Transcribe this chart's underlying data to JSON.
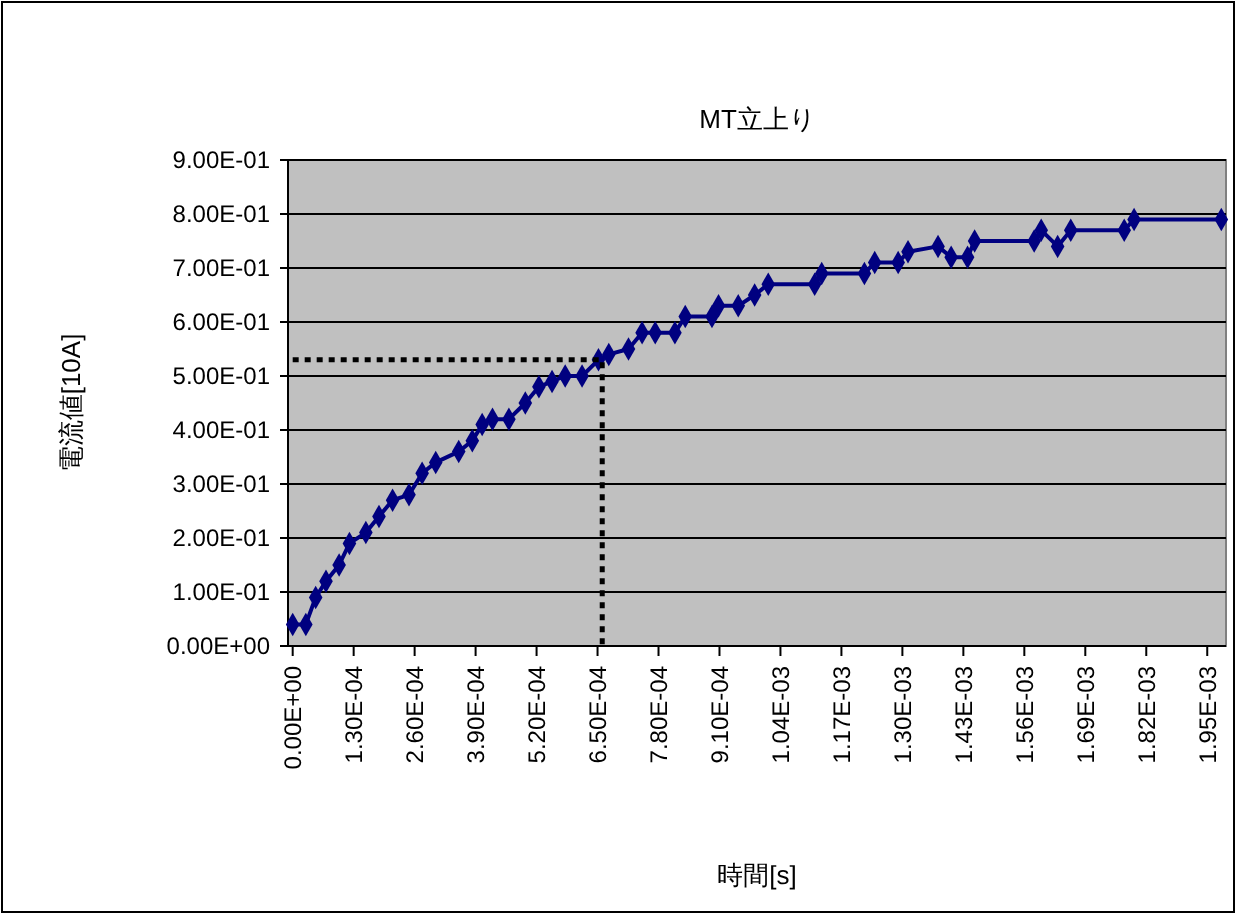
{
  "chart_data": {
    "type": "line",
    "title": "MT立上り",
    "xlabel": "時間[s]",
    "ylabel": "電流値[10A]",
    "xlim": [
      -1e-05,
      0.00199
    ],
    "xticks": [
      {
        "value": 0,
        "label": "0.00E+00"
      },
      {
        "value": 0.00013,
        "label": "1.30E-04"
      },
      {
        "value": 0.00026,
        "label": "2.60E-04"
      },
      {
        "value": 0.00039,
        "label": "3.90E-04"
      },
      {
        "value": 0.00052,
        "label": "5.20E-04"
      },
      {
        "value": 0.00065,
        "label": "6.50E-04"
      },
      {
        "value": 0.00078,
        "label": "7.80E-04"
      },
      {
        "value": 0.00091,
        "label": "9.10E-04"
      },
      {
        "value": 0.00104,
        "label": "1.04E-03"
      },
      {
        "value": 0.00117,
        "label": "1.17E-03"
      },
      {
        "value": 0.0013,
        "label": "1.30E-03"
      },
      {
        "value": 0.00143,
        "label": "1.43E-03"
      },
      {
        "value": 0.00156,
        "label": "1.56E-03"
      },
      {
        "value": 0.00169,
        "label": "1.69E-03"
      },
      {
        "value": 0.00182,
        "label": "1.82E-03"
      },
      {
        "value": 0.00195,
        "label": "1.95E-03"
      }
    ],
    "ylim": [
      0,
      0.9
    ],
    "yticks": [
      {
        "value": 0,
        "label": "0.00E+00"
      },
      {
        "value": 0.1,
        "label": "1.00E-01"
      },
      {
        "value": 0.2,
        "label": "2.00E-01"
      },
      {
        "value": 0.3,
        "label": "3.00E-01"
      },
      {
        "value": 0.4,
        "label": "4.00E-01"
      },
      {
        "value": 0.5,
        "label": "5.00E-01"
      },
      {
        "value": 0.6,
        "label": "6.00E-01"
      },
      {
        "value": 0.7,
        "label": "7.00E-01"
      },
      {
        "value": 0.8,
        "label": "8.00E-01"
      },
      {
        "value": 0.9,
        "label": "9.00E-01"
      }
    ],
    "grid": "y",
    "series": [
      {
        "color": "#000080",
        "marker": "diamond",
        "line_style": "solid",
        "x": [
          0,
          2.8e-05,
          4.9e-05,
          7.1e-05,
          9.9e-05,
          0.000121,
          0.000156,
          0.000184,
          0.000213,
          0.000248,
          0.000276,
          0.000305,
          0.000354,
          0.000383,
          0.000404,
          0.000426,
          0.000461,
          0.000496,
          0.000525,
          0.000553,
          0.000581,
          0.000617,
          0.000652,
          0.000674,
          0.000716,
          0.000745,
          0.000773,
          0.000815,
          0.000837,
          0.000894,
          0.000908,
          0.00095,
          0.000985,
          0.001014,
          0.001113,
          0.001128,
          0.001219,
          0.001241,
          0.001291,
          0.001312,
          0.001376,
          0.001404,
          0.001439,
          0.001454,
          0.001581,
          0.001596,
          0.001631,
          0.001659,
          0.001773,
          0.001794,
          0.00198
        ],
        "values": [
          0.04,
          0.04,
          0.09,
          0.12,
          0.15,
          0.19,
          0.21,
          0.24,
          0.27,
          0.28,
          0.32,
          0.34,
          0.36,
          0.38,
          0.41,
          0.42,
          0.42,
          0.45,
          0.48,
          0.49,
          0.5,
          0.5,
          0.53,
          0.54,
          0.55,
          0.58,
          0.58,
          0.58,
          0.61,
          0.61,
          0.63,
          0.63,
          0.65,
          0.67,
          0.67,
          0.69,
          0.69,
          0.71,
          0.71,
          0.73,
          0.74,
          0.72,
          0.72,
          0.75,
          0.75,
          0.77,
          0.74,
          0.77,
          0.77,
          0.79,
          0.79
        ]
      },
      {
        "color": "#000000",
        "marker": "none",
        "line_style": "dotted",
        "x": [
          0,
          0.00066,
          0.00066
        ],
        "values": [
          0.53,
          0.53,
          0
        ]
      }
    ]
  }
}
